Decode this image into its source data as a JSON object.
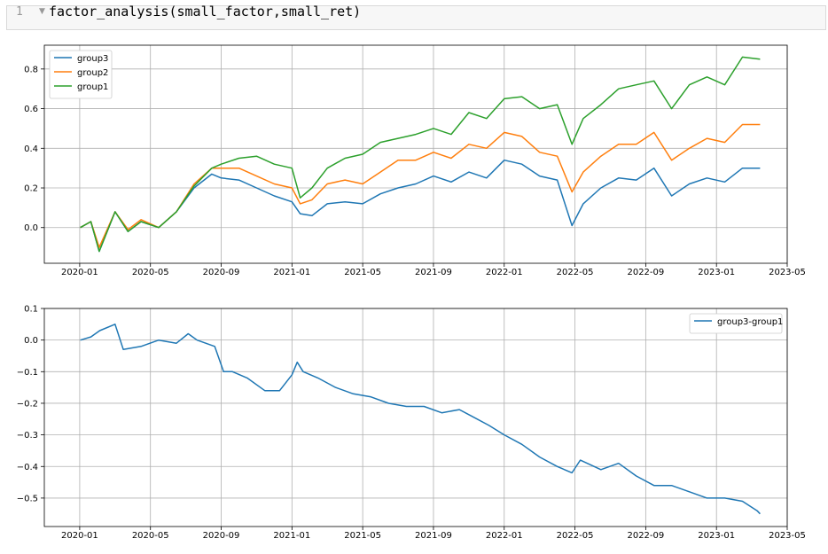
{
  "cell": {
    "line_number": "1",
    "code": "factor_analysis(small_factor,small_ret)"
  },
  "colors": {
    "group3": "#1f77b4",
    "group2": "#ff7f0e",
    "group1": "#2ca02c",
    "diff": "#1f77b4",
    "grid": "#b0b0b0"
  },
  "chart_data": [
    {
      "type": "line",
      "title": "",
      "xlabel": "",
      "ylabel": "",
      "x_ticks": [
        "2020-01",
        "2020-05",
        "2020-09",
        "2021-01",
        "2021-05",
        "2021-09",
        "2022-01",
        "2022-05",
        "2022-09",
        "2023-01",
        "2023-05"
      ],
      "y_ticks": [
        "0.0",
        "0.2",
        "0.4",
        "0.6",
        "0.8"
      ],
      "ylim": [
        -0.18,
        0.92
      ],
      "xlim": [
        "2019-11",
        "2023-05"
      ],
      "grid": true,
      "legend_position": "top-left",
      "x": [
        "2020-01-02",
        "2020-01-20",
        "2020-02-04",
        "2020-03-01",
        "2020-03-23",
        "2020-04-15",
        "2020-05-15",
        "2020-06-15",
        "2020-07-15",
        "2020-08-15",
        "2020-09-01",
        "2020-10-01",
        "2020-11-01",
        "2020-12-01",
        "2021-01-01",
        "2021-01-15",
        "2021-02-05",
        "2021-03-01",
        "2021-04-01",
        "2021-05-01",
        "2021-06-01",
        "2021-07-01",
        "2021-08-01",
        "2021-09-01",
        "2021-10-01",
        "2021-11-01",
        "2021-12-01",
        "2022-01-01",
        "2022-02-01",
        "2022-03-01",
        "2022-04-01",
        "2022-04-26",
        "2022-05-15",
        "2022-06-15",
        "2022-07-15",
        "2022-08-15",
        "2022-09-15",
        "2022-10-15",
        "2022-11-15",
        "2022-12-15",
        "2023-01-15",
        "2023-02-15",
        "2023-03-15"
      ],
      "series": [
        {
          "name": "group3",
          "values": [
            0.0,
            0.03,
            -0.12,
            0.08,
            -0.02,
            0.03,
            0.0,
            0.08,
            0.2,
            0.27,
            0.25,
            0.24,
            0.2,
            0.16,
            0.13,
            0.07,
            0.06,
            0.12,
            0.13,
            0.12,
            0.17,
            0.2,
            0.22,
            0.26,
            0.23,
            0.28,
            0.25,
            0.34,
            0.32,
            0.26,
            0.24,
            0.01,
            0.12,
            0.2,
            0.25,
            0.24,
            0.3,
            0.16,
            0.22,
            0.25,
            0.23,
            0.3,
            0.3
          ]
        },
        {
          "name": "group2",
          "values": [
            0.0,
            0.03,
            -0.1,
            0.08,
            -0.01,
            0.04,
            0.0,
            0.08,
            0.22,
            0.3,
            0.3,
            0.3,
            0.26,
            0.22,
            0.2,
            0.12,
            0.14,
            0.22,
            0.24,
            0.22,
            0.28,
            0.34,
            0.34,
            0.38,
            0.35,
            0.42,
            0.4,
            0.48,
            0.46,
            0.38,
            0.36,
            0.18,
            0.28,
            0.36,
            0.42,
            0.42,
            0.48,
            0.34,
            0.4,
            0.45,
            0.43,
            0.52,
            0.52
          ]
        },
        {
          "name": "group1",
          "values": [
            0.0,
            0.03,
            -0.12,
            0.08,
            -0.02,
            0.03,
            0.0,
            0.08,
            0.21,
            0.3,
            0.32,
            0.35,
            0.36,
            0.32,
            0.3,
            0.15,
            0.2,
            0.3,
            0.35,
            0.37,
            0.43,
            0.45,
            0.47,
            0.5,
            0.47,
            0.58,
            0.55,
            0.65,
            0.66,
            0.6,
            0.62,
            0.42,
            0.55,
            0.62,
            0.7,
            0.72,
            0.74,
            0.6,
            0.72,
            0.76,
            0.72,
            0.86,
            0.85
          ]
        }
      ]
    },
    {
      "type": "line",
      "title": "",
      "xlabel": "",
      "ylabel": "",
      "x_ticks": [
        "2020-01",
        "2020-05",
        "2020-09",
        "2021-01",
        "2021-05",
        "2021-09",
        "2022-01",
        "2022-05",
        "2022-09",
        "2023-01",
        "2023-05"
      ],
      "y_ticks": [
        "0.1",
        "0.0",
        "−0.1",
        "−0.2",
        "−0.3",
        "−0.4",
        "−0.5"
      ],
      "ylim": [
        -0.59,
        0.1
      ],
      "xlim": [
        "2019-11",
        "2023-05"
      ],
      "grid": true,
      "legend_position": "top-right",
      "x": [
        "2020-01-02",
        "2020-01-20",
        "2020-02-05",
        "2020-03-01",
        "2020-03-15",
        "2020-04-15",
        "2020-05-15",
        "2020-06-15",
        "2020-07-05",
        "2020-07-20",
        "2020-08-20",
        "2020-09-05",
        "2020-09-20",
        "2020-10-15",
        "2020-11-15",
        "2020-12-10",
        "2021-01-01",
        "2021-01-10",
        "2021-01-20",
        "2021-02-15",
        "2021-03-15",
        "2021-04-15",
        "2021-05-15",
        "2021-06-15",
        "2021-07-15",
        "2021-08-15",
        "2021-09-15",
        "2021-10-15",
        "2021-11-05",
        "2021-12-05",
        "2022-01-01",
        "2022-02-01",
        "2022-03-01",
        "2022-04-01",
        "2022-04-26",
        "2022-05-10",
        "2022-06-15",
        "2022-07-15",
        "2022-08-15",
        "2022-09-15",
        "2022-10-15",
        "2022-11-15",
        "2022-12-15",
        "2023-01-15",
        "2023-02-15",
        "2023-03-10",
        "2023-03-15"
      ],
      "series": [
        {
          "name": "group3-group1",
          "values": [
            0.0,
            0.01,
            0.03,
            0.05,
            -0.03,
            -0.02,
            0.0,
            -0.01,
            0.02,
            0.0,
            -0.02,
            -0.1,
            -0.1,
            -0.12,
            -0.16,
            -0.16,
            -0.11,
            -0.07,
            -0.1,
            -0.12,
            -0.15,
            -0.17,
            -0.18,
            -0.2,
            -0.21,
            -0.21,
            -0.23,
            -0.22,
            -0.24,
            -0.27,
            -0.3,
            -0.33,
            -0.37,
            -0.4,
            -0.42,
            -0.38,
            -0.41,
            -0.39,
            -0.43,
            -0.46,
            -0.46,
            -0.48,
            -0.5,
            -0.5,
            -0.51,
            -0.54,
            -0.55
          ]
        }
      ]
    }
  ]
}
